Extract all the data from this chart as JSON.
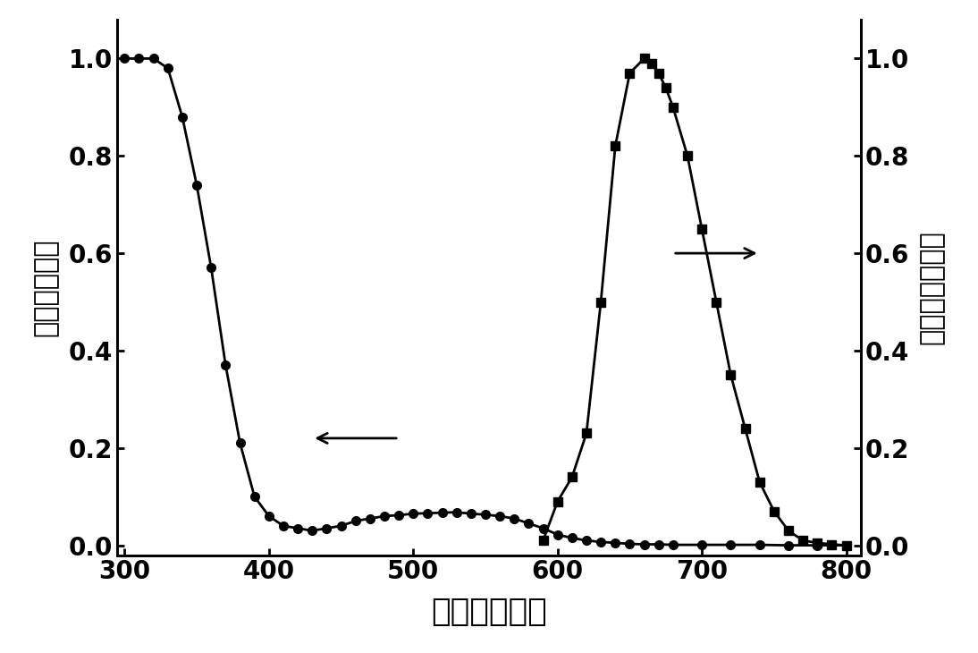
{
  "absorption_x": [
    300,
    310,
    320,
    330,
    340,
    350,
    360,
    370,
    380,
    390,
    400,
    410,
    420,
    430,
    440,
    450,
    460,
    470,
    480,
    490,
    500,
    510,
    520,
    530,
    540,
    550,
    560,
    570,
    580,
    590,
    600,
    610,
    620,
    630,
    640,
    650,
    660,
    670,
    680,
    700,
    720,
    740,
    760,
    780,
    800
  ],
  "absorption_y": [
    1.0,
    1.0,
    1.0,
    0.98,
    0.88,
    0.74,
    0.57,
    0.37,
    0.21,
    0.1,
    0.06,
    0.04,
    0.035,
    0.03,
    0.035,
    0.04,
    0.05,
    0.055,
    0.06,
    0.062,
    0.065,
    0.066,
    0.067,
    0.068,
    0.065,
    0.063,
    0.06,
    0.055,
    0.045,
    0.035,
    0.022,
    0.015,
    0.01,
    0.007,
    0.005,
    0.003,
    0.002,
    0.002,
    0.001,
    0.001,
    0.001,
    0.001,
    0.0,
    0.0,
    0.0
  ],
  "fluorescence_x": [
    590,
    600,
    610,
    620,
    630,
    640,
    650,
    660,
    665,
    670,
    675,
    680,
    690,
    700,
    710,
    720,
    730,
    740,
    750,
    760,
    770,
    780,
    790,
    800
  ],
  "fluorescence_y": [
    0.01,
    0.09,
    0.14,
    0.23,
    0.5,
    0.82,
    0.97,
    1.0,
    0.99,
    0.97,
    0.94,
    0.9,
    0.8,
    0.65,
    0.5,
    0.35,
    0.24,
    0.13,
    0.07,
    0.03,
    0.01,
    0.005,
    0.002,
    0.0
  ],
  "xlim": [
    295,
    810
  ],
  "ylim": [
    -0.02,
    1.08
  ],
  "xticks": [
    300,
    400,
    500,
    600,
    700,
    800
  ],
  "yticks": [
    0.0,
    0.2,
    0.4,
    0.6,
    0.8,
    1.0
  ],
  "xlabel": "波长（纳米）",
  "ylabel_left": "归一化吸光度",
  "ylabel_right": "归一化荧光强度",
  "line_color": "#000000",
  "background_color": "#ffffff",
  "marker_circle": "o",
  "marker_square": "s",
  "markersize": 7,
  "linewidth": 2.0,
  "fontsize_ticks": 20,
  "fontsize_xlabel": 26,
  "fontsize_ylabel": 22
}
